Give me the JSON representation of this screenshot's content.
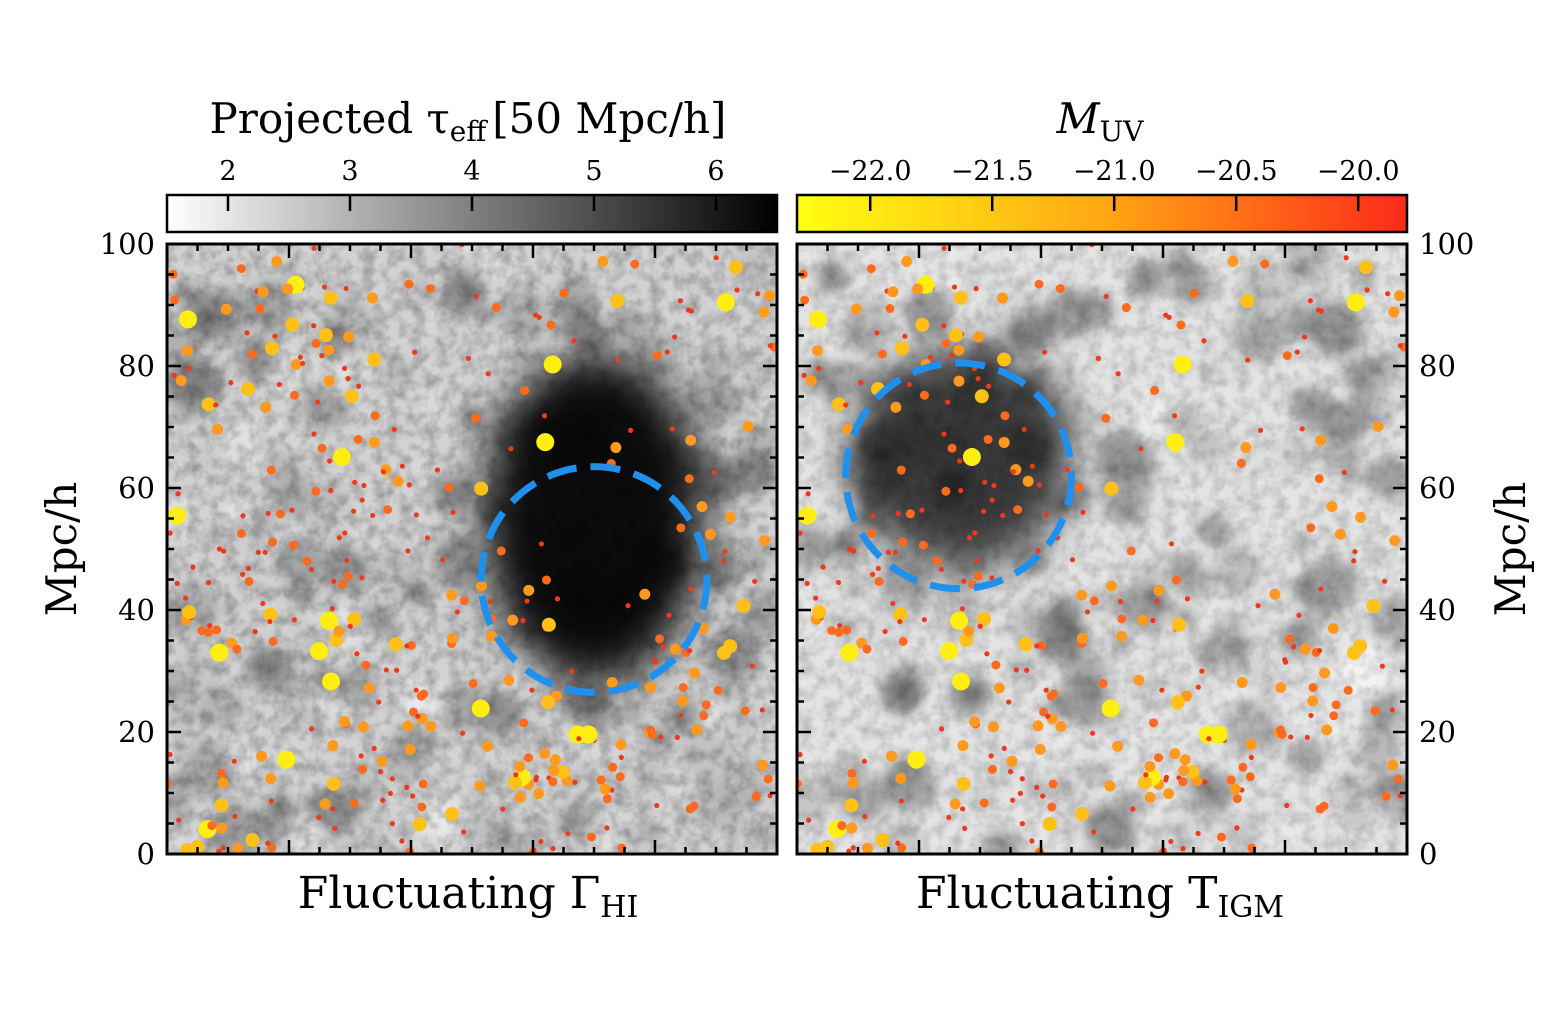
{
  "chart_data": [
    {
      "type": "heatmap",
      "panel": "left",
      "title": "Fluctuating Γ",
      "title_sub": "HI",
      "xlim": [
        0,
        100
      ],
      "ylim": [
        0,
        100
      ],
      "ylabel": "Mpc/h",
      "yticks": [
        0,
        20,
        40,
        60,
        80,
        100
      ],
      "circle": {
        "cx": 70,
        "cy": 45,
        "r": 18.5,
        "color": "#2090ee",
        "style": "dashed"
      },
      "dense_region": {
        "cx": 70,
        "cy": 55,
        "rx": 18,
        "ry": 27
      }
    },
    {
      "type": "heatmap",
      "panel": "right",
      "title": "Fluctuating T",
      "title_sub": "IGM",
      "xlim": [
        0,
        100
      ],
      "ylim": [
        0,
        100
      ],
      "ylabel": "Mpc/h",
      "yticks": [
        0,
        20,
        40,
        60,
        80,
        100
      ],
      "circle": {
        "cx": 26.5,
        "cy": 62,
        "r": 18.5,
        "color": "#2090ee",
        "style": "dashed"
      },
      "dense_region": {
        "cx": 27,
        "cy": 65,
        "rx": 18,
        "ry": 18
      }
    }
  ],
  "colorbars": {
    "tau": {
      "label_prefix": "Projected τ",
      "label_sub": "eff",
      "label_suffix": "[50 Mpc/h]",
      "ticks": [
        "2",
        "3",
        "4",
        "5",
        "6"
      ],
      "range": [
        1.5,
        6.5
      ],
      "colors": [
        "#ffffff",
        "#000000"
      ]
    },
    "muv": {
      "label": "M",
      "label_sub": "UV",
      "ticks": [
        "−22.0",
        "−21.5",
        "−21.0",
        "−20.5",
        "−20.0"
      ],
      "range": [
        -22.3,
        -19.8
      ],
      "colors": [
        "#ffff10",
        "#ffaa10",
        "#ff2a1a"
      ]
    }
  },
  "galaxy_colors": [
    "#ffee10",
    "#ffc018",
    "#ff9a1e",
    "#ff6a1f",
    "#ee3a1a"
  ]
}
